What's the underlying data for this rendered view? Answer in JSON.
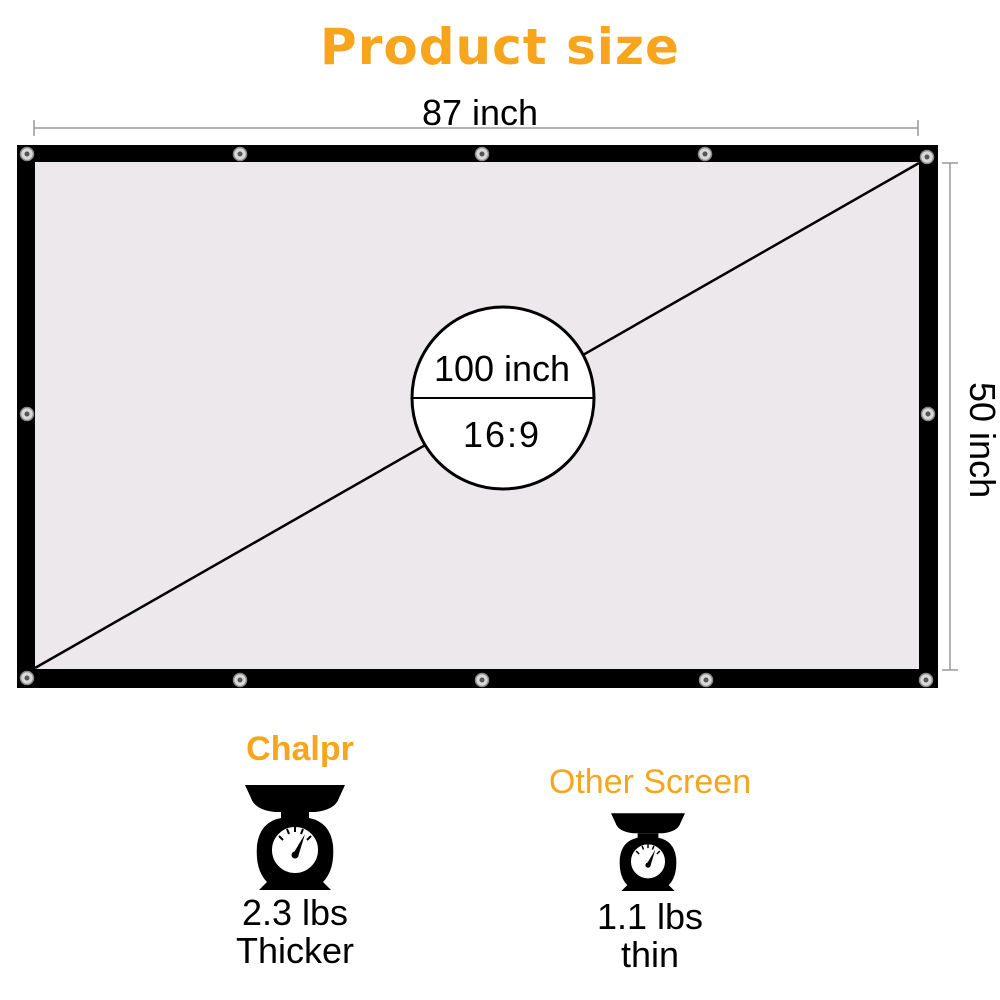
{
  "title": "Product size",
  "width_label": "87 inch",
  "height_label": "50 inch",
  "diagonal_label": "100 inch",
  "ratio_label": "16:9",
  "comparison": {
    "chalpr": {
      "name": "Chalpr",
      "weight": "2.3 lbs",
      "note": "Thicker"
    },
    "other": {
      "name": "Other Screen",
      "weight": "1.1 lbs",
      "note": "thin"
    }
  },
  "colors": {
    "accent": "#f7a51c",
    "frame": "#000000",
    "screen": "#ece8ec"
  },
  "icons": [
    "scale-icon",
    "grommet-icon"
  ]
}
